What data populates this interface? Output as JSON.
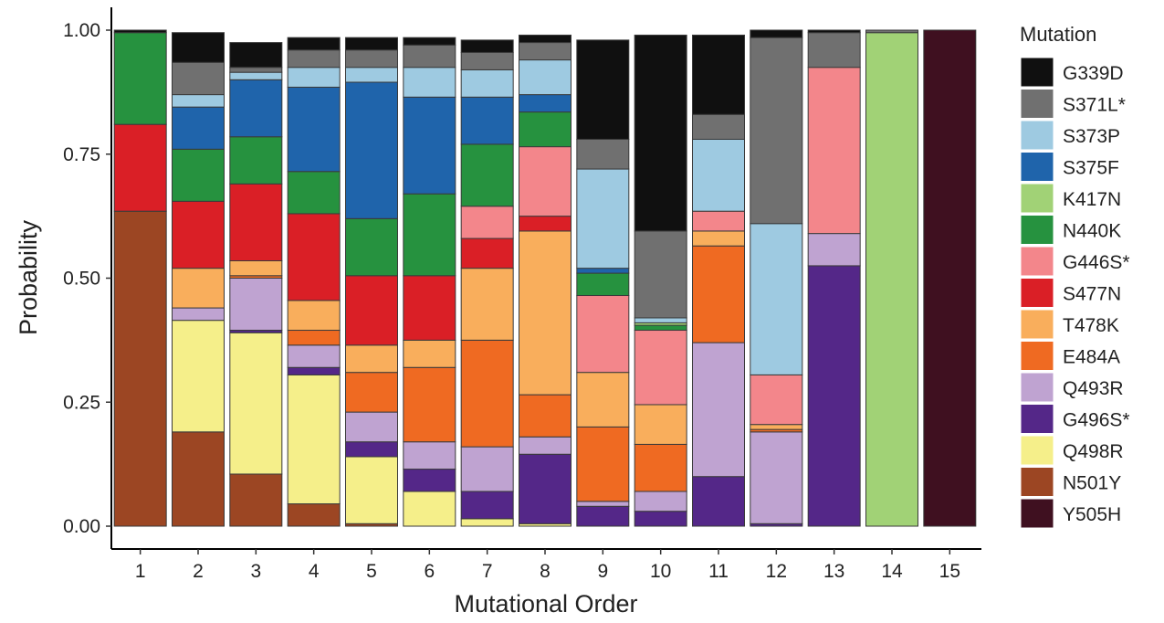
{
  "chart_data": {
    "type": "bar",
    "stacked": true,
    "xlabel": "Mutational Order",
    "ylabel": "Probability",
    "ylim": [
      0,
      1
    ],
    "categories": [
      "1",
      "2",
      "3",
      "4",
      "5",
      "6",
      "7",
      "8",
      "9",
      "10",
      "11",
      "12",
      "13",
      "14",
      "15"
    ],
    "y_ticks": [
      "0.00",
      "0.25",
      "0.50",
      "0.75",
      "1.00"
    ],
    "legend_title": "Mutation",
    "legend_position": "right",
    "grid": false,
    "series": [
      {
        "name": "N501Y",
        "color": "#9c4623",
        "values": [
          0.635,
          0.19,
          0.105,
          0.045,
          0.005,
          0.0,
          0.0,
          0.0,
          0.0,
          0.0,
          0.0,
          0.0,
          0.0,
          0.0,
          0.0
        ]
      },
      {
        "name": "Q498R",
        "color": "#f5ef8a",
        "values": [
          0.0,
          0.225,
          0.285,
          0.26,
          0.135,
          0.07,
          0.015,
          0.005,
          0.0,
          0.0,
          0.0,
          0.0,
          0.0,
          0.0,
          0.0
        ]
      },
      {
        "name": "G496S*",
        "color": "#542788",
        "values": [
          0.0,
          0.0,
          0.005,
          0.015,
          0.03,
          0.045,
          0.055,
          0.14,
          0.04,
          0.03,
          0.1,
          0.005,
          0.525,
          0.0,
          0.0
        ]
      },
      {
        "name": "Q493R",
        "color": "#bfa3d1",
        "values": [
          0.0,
          0.025,
          0.105,
          0.045,
          0.06,
          0.055,
          0.09,
          0.035,
          0.01,
          0.04,
          0.27,
          0.185,
          0.065,
          0.0,
          0.0
        ]
      },
      {
        "name": "E484A",
        "color": "#ef6a22",
        "values": [
          0.0,
          0.0,
          0.005,
          0.03,
          0.08,
          0.15,
          0.215,
          0.085,
          0.15,
          0.095,
          0.195,
          0.005,
          0.0,
          0.0,
          0.0
        ]
      },
      {
        "name": "T478K",
        "color": "#f9ae5c",
        "values": [
          0.0,
          0.08,
          0.03,
          0.06,
          0.055,
          0.055,
          0.145,
          0.33,
          0.11,
          0.08,
          0.03,
          0.01,
          0.0,
          0.0,
          0.0
        ]
      },
      {
        "name": "S477N",
        "color": "#da1f26",
        "values": [
          0.175,
          0.135,
          0.155,
          0.175,
          0.14,
          0.13,
          0.06,
          0.03,
          0.0,
          0.0,
          0.0,
          0.0,
          0.0,
          0.0,
          0.0
        ]
      },
      {
        "name": "G446S*",
        "color": "#f3868b",
        "values": [
          0.0,
          0.0,
          0.0,
          0.0,
          0.0,
          0.0,
          0.065,
          0.14,
          0.155,
          0.15,
          0.04,
          0.1,
          0.335,
          0.0,
          0.0
        ]
      },
      {
        "name": "N440K",
        "color": "#26923f",
        "values": [
          0.185,
          0.105,
          0.095,
          0.085,
          0.115,
          0.165,
          0.125,
          0.07,
          0.045,
          0.01,
          0.0,
          0.0,
          0.0,
          0.0,
          0.0
        ]
      },
      {
        "name": "K417N",
        "color": "#a1d276",
        "values": [
          0.0,
          0.0,
          0.0,
          0.0,
          0.0,
          0.0,
          0.0,
          0.0,
          0.0,
          0.005,
          0.0,
          0.0,
          0.0,
          0.995,
          0.0
        ]
      },
      {
        "name": "S375F",
        "color": "#1f64ab",
        "values": [
          0.0,
          0.085,
          0.115,
          0.17,
          0.275,
          0.195,
          0.095,
          0.035,
          0.01,
          0.0,
          0.0,
          0.0,
          0.0,
          0.0,
          0.0
        ]
      },
      {
        "name": "S373P",
        "color": "#9ecae1",
        "values": [
          0.0,
          0.025,
          0.015,
          0.04,
          0.03,
          0.06,
          0.055,
          0.07,
          0.2,
          0.01,
          0.145,
          0.305,
          0.0,
          0.0,
          0.0
        ]
      },
      {
        "name": "S371L*",
        "color": "#707070",
        "values": [
          0.0,
          0.065,
          0.01,
          0.035,
          0.035,
          0.045,
          0.035,
          0.035,
          0.06,
          0.175,
          0.05,
          0.375,
          0.07,
          0.005,
          0.0
        ]
      },
      {
        "name": "G339D",
        "color": "#101010",
        "values": [
          0.005,
          0.06,
          0.05,
          0.025,
          0.025,
          0.015,
          0.025,
          0.015,
          0.2,
          0.395,
          0.16,
          0.015,
          0.005,
          0.0,
          0.0
        ]
      },
      {
        "name": "Y505H",
        "color": "#3f1020",
        "values": [
          0.0,
          0.0,
          0.0,
          0.0,
          0.0,
          0.0,
          0.0,
          0.0,
          0.0,
          0.0,
          0.0,
          0.0,
          0.0,
          0.0,
          1.0
        ]
      }
    ],
    "legend_order": [
      "G339D",
      "S371L*",
      "S373P",
      "S375F",
      "K417N",
      "N440K",
      "G446S*",
      "S477N",
      "T478K",
      "E484A",
      "Q493R",
      "G496S*",
      "Q498R",
      "N501Y",
      "Y505H"
    ]
  }
}
